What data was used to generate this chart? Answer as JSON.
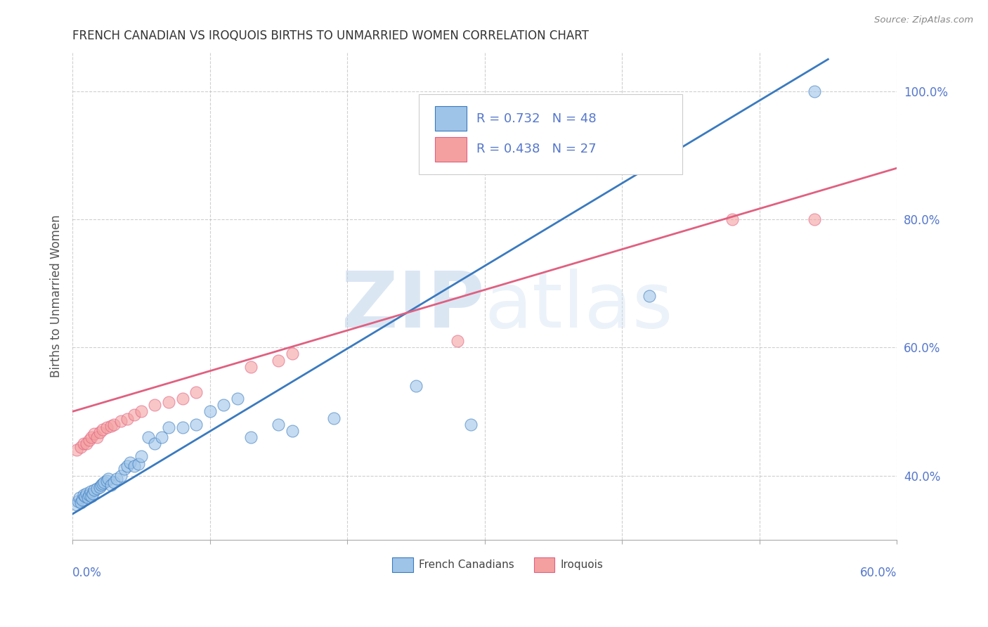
{
  "title": "FRENCH CANADIAN VS IROQUOIS BIRTHS TO UNMARRIED WOMEN CORRELATION CHART",
  "source": "Source: ZipAtlas.com",
  "ylabel": "Births to Unmarried Women",
  "xlim": [
    0.0,
    0.6
  ],
  "ylim": [
    0.3,
    1.06
  ],
  "yticks": [
    0.4,
    0.6,
    0.8,
    1.0
  ],
  "ytick_labels": [
    "40.0%",
    "60.0%",
    "80.0%",
    "100.0%"
  ],
  "xtick_left": "0.0%",
  "xtick_right": "60.0%",
  "background_color": "#ffffff",
  "grid_color": "#bbbbbb",
  "watermark": "ZIPatlas",
  "blue_color": "#9ec4e8",
  "pink_color": "#f4a0a0",
  "blue_line_color": "#3a7abf",
  "pink_line_color": "#e06080",
  "axis_label_color": "#5577cc",
  "title_color": "#333333",
  "legend_label_color": "#5577cc",
  "french_canadians_x": [
    0.003,
    0.004,
    0.005,
    0.006,
    0.007,
    0.008,
    0.009,
    0.01,
    0.011,
    0.012,
    0.013,
    0.014,
    0.015,
    0.016,
    0.018,
    0.02,
    0.021,
    0.022,
    0.023,
    0.025,
    0.026,
    0.028,
    0.03,
    0.032,
    0.035,
    0.038,
    0.04,
    0.042,
    0.045,
    0.048,
    0.05,
    0.055,
    0.06,
    0.065,
    0.07,
    0.08,
    0.09,
    0.1,
    0.11,
    0.12,
    0.13,
    0.15,
    0.16,
    0.19,
    0.25,
    0.29,
    0.42,
    0.54
  ],
  "french_canadians_y": [
    0.355,
    0.36,
    0.365,
    0.358,
    0.362,
    0.37,
    0.368,
    0.372,
    0.365,
    0.37,
    0.375,
    0.368,
    0.372,
    0.378,
    0.38,
    0.382,
    0.385,
    0.388,
    0.39,
    0.392,
    0.395,
    0.385,
    0.39,
    0.395,
    0.4,
    0.41,
    0.415,
    0.42,
    0.415,
    0.418,
    0.43,
    0.46,
    0.45,
    0.46,
    0.475,
    0.475,
    0.48,
    0.5,
    0.51,
    0.52,
    0.46,
    0.48,
    0.47,
    0.49,
    0.54,
    0.48,
    0.68,
    1.0
  ],
  "iroquois_x": [
    0.003,
    0.006,
    0.008,
    0.01,
    0.012,
    0.014,
    0.016,
    0.018,
    0.02,
    0.022,
    0.025,
    0.028,
    0.03,
    0.035,
    0.04,
    0.045,
    0.05,
    0.06,
    0.07,
    0.08,
    0.09,
    0.13,
    0.15,
    0.16,
    0.28,
    0.48,
    0.54
  ],
  "iroquois_y": [
    0.44,
    0.445,
    0.45,
    0.45,
    0.455,
    0.46,
    0.465,
    0.46,
    0.468,
    0.472,
    0.475,
    0.478,
    0.48,
    0.485,
    0.488,
    0.495,
    0.5,
    0.51,
    0.515,
    0.52,
    0.53,
    0.57,
    0.58,
    0.59,
    0.61,
    0.8,
    0.8
  ],
  "blue_regression": [
    0.34,
    1.05
  ],
  "pink_regression": [
    0.5,
    0.88
  ]
}
